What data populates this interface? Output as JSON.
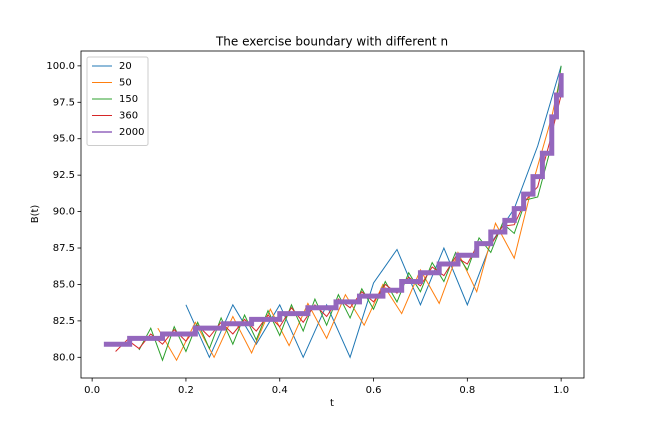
{
  "chart_data": {
    "type": "line",
    "title": "The exercise boundary with different n",
    "xlabel": "t",
    "ylabel": "B(t)",
    "xlim": [
      -0.02375,
      1.04875
    ],
    "ylim": [
      78.58,
      101.02
    ],
    "xticks": [
      {
        "value": 0,
        "label": "0.0"
      },
      {
        "value": 0.2,
        "label": "0.2"
      },
      {
        "value": 0.4,
        "label": "0.4"
      },
      {
        "value": 0.6,
        "label": "0.6"
      },
      {
        "value": 0.8,
        "label": "0.8"
      },
      {
        "value": 1,
        "label": "1.0"
      }
    ],
    "yticks": [
      {
        "value": 80,
        "label": "80.0"
      },
      {
        "value": 82.5,
        "label": "82.5"
      },
      {
        "value": 85,
        "label": "85.0"
      },
      {
        "value": 87.5,
        "label": "87.5"
      },
      {
        "value": 90,
        "label": "90.0"
      },
      {
        "value": 92.5,
        "label": "92.5"
      },
      {
        "value": 95,
        "label": "95.0"
      },
      {
        "value": 97.5,
        "label": "97.5"
      },
      {
        "value": 100,
        "label": "100.0"
      }
    ],
    "legend": "upper left",
    "series": [
      {
        "name": "20",
        "color": "#1f77b4",
        "width": 1,
        "x": [
          0.2,
          0.25,
          0.3,
          0.35,
          0.4,
          0.45,
          0.5,
          0.55,
          0.6,
          0.65,
          0.7,
          0.75,
          0.8,
          0.85,
          0.9,
          0.95,
          1.0
        ],
        "values": [
          83.6,
          80.0,
          83.6,
          80.9,
          83.6,
          80.0,
          83.6,
          80.0,
          85.1,
          87.4,
          83.6,
          87.5,
          83.6,
          87.8,
          90.2,
          94.5,
          100.0
        ]
      },
      {
        "name": "50",
        "color": "#ff7f0e",
        "width": 1,
        "x": [
          0.14,
          0.18,
          0.22,
          0.26,
          0.3,
          0.34,
          0.38,
          0.42,
          0.46,
          0.5,
          0.54,
          0.58,
          0.62,
          0.66,
          0.7,
          0.74,
          0.78,
          0.82,
          0.86,
          0.9,
          0.94,
          0.98,
          1.0
        ],
        "values": [
          82.0,
          79.8,
          82.4,
          80.0,
          82.8,
          80.3,
          83.3,
          80.8,
          83.7,
          81.3,
          84.3,
          82.2,
          85.0,
          83.0,
          86.0,
          83.7,
          87.2,
          84.5,
          89.2,
          86.8,
          92.0,
          96.5,
          99.5
        ]
      },
      {
        "name": "150",
        "color": "#2ca02c",
        "width": 1,
        "x": [
          0.1,
          0.125,
          0.15,
          0.175,
          0.2,
          0.225,
          0.25,
          0.275,
          0.3,
          0.325,
          0.35,
          0.375,
          0.4,
          0.425,
          0.45,
          0.475,
          0.5,
          0.525,
          0.55,
          0.575,
          0.6,
          0.625,
          0.65,
          0.675,
          0.7,
          0.725,
          0.75,
          0.775,
          0.8,
          0.825,
          0.85,
          0.875,
          0.9,
          0.925,
          0.95,
          0.975,
          1.0
        ],
        "values": [
          80.5,
          82.0,
          79.8,
          82.1,
          80.4,
          82.4,
          80.6,
          82.7,
          80.9,
          82.9,
          81.2,
          83.2,
          81.5,
          83.6,
          81.8,
          84.0,
          82.2,
          84.3,
          82.7,
          84.7,
          83.3,
          85.2,
          83.8,
          85.8,
          84.5,
          86.5,
          85.2,
          87.2,
          86.0,
          88.2,
          87.2,
          89.2,
          88.5,
          90.8,
          91.0,
          94.0,
          100.0
        ]
      },
      {
        "name": "360",
        "color": "#d62728",
        "width": 1,
        "x": [
          0.05,
          0.075,
          0.1,
          0.125,
          0.15,
          0.175,
          0.2,
          0.225,
          0.25,
          0.275,
          0.3,
          0.325,
          0.35,
          0.375,
          0.4,
          0.425,
          0.45,
          0.475,
          0.5,
          0.525,
          0.55,
          0.575,
          0.6,
          0.625,
          0.65,
          0.675,
          0.7,
          0.725,
          0.75,
          0.775,
          0.8,
          0.825,
          0.85,
          0.875,
          0.9,
          0.925,
          0.95,
          0.975,
          1.0
        ],
        "values": [
          80.4,
          81.2,
          80.6,
          81.6,
          80.9,
          81.9,
          81.1,
          82.2,
          81.4,
          82.4,
          81.6,
          82.6,
          81.8,
          82.9,
          82.1,
          83.4,
          82.4,
          83.6,
          82.8,
          84.0,
          83.4,
          84.5,
          83.8,
          85.0,
          84.4,
          85.5,
          84.9,
          86.2,
          85.6,
          86.9,
          86.4,
          87.9,
          87.7,
          89.0,
          89.1,
          90.8,
          91.7,
          94.7,
          98.0
        ]
      },
      {
        "name": "2000",
        "color": "#9467bd",
        "width": 5,
        "x": [
          0.025,
          0.08,
          0.08,
          0.15,
          0.15,
          0.22,
          0.22,
          0.28,
          0.28,
          0.34,
          0.34,
          0.4,
          0.4,
          0.46,
          0.46,
          0.52,
          0.52,
          0.57,
          0.57,
          0.62,
          0.62,
          0.66,
          0.66,
          0.7,
          0.7,
          0.74,
          0.74,
          0.78,
          0.78,
          0.82,
          0.82,
          0.85,
          0.85,
          0.88,
          0.88,
          0.9,
          0.9,
          0.92,
          0.92,
          0.94,
          0.94,
          0.96,
          0.96,
          0.98,
          0.98,
          0.99,
          0.99,
          1.0,
          1.0
        ],
        "values": [
          80.9,
          80.9,
          81.3,
          81.3,
          81.6,
          81.6,
          82.0,
          82.0,
          82.3,
          82.3,
          82.6,
          82.6,
          83.0,
          83.0,
          83.4,
          83.4,
          83.8,
          83.8,
          84.2,
          84.2,
          84.6,
          84.6,
          85.2,
          85.2,
          85.8,
          85.8,
          86.4,
          86.4,
          87.0,
          87.0,
          87.8,
          87.8,
          88.6,
          88.6,
          89.4,
          89.4,
          90.2,
          90.2,
          91.2,
          91.2,
          92.4,
          92.4,
          94.0,
          94.0,
          96.5,
          96.5,
          98.0,
          98.0,
          99.5
        ]
      }
    ]
  }
}
